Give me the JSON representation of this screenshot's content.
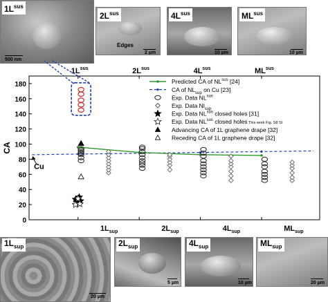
{
  "figure": {
    "top_panels": [
      {
        "label": "1L",
        "label_sup": "sus",
        "scale": "500 nm",
        "annotation": ""
      },
      {
        "label": "2L",
        "label_sup": "sus",
        "scale": "2 µm",
        "annotation": "Edges"
      },
      {
        "label": "4L",
        "label_sup": "sus",
        "scale": "10 µm",
        "annotation": ""
      },
      {
        "label": "ML",
        "label_sup": "sus",
        "scale": "10 µm",
        "annotation": ""
      }
    ],
    "bottom_panels": [
      {
        "label": "1L",
        "label_sub": "sup",
        "scale": "20 µm"
      },
      {
        "label": "2L",
        "label_sub": "sup",
        "scale": "5 µm"
      },
      {
        "label": "4L",
        "label_sub": "sup",
        "scale": "10 µm"
      },
      {
        "label": "ML",
        "label_sub": "sup",
        "scale": "20 µm"
      }
    ]
  },
  "chart_data": {
    "type": "scatter",
    "ylabel": "CA",
    "ylim": [
      0,
      190
    ],
    "yticks": [
      0,
      20,
      40,
      60,
      80,
      100,
      120,
      140,
      160,
      180
    ],
    "top_categories": [
      {
        "base": "1L",
        "sup": "sus"
      },
      {
        "base": "2L",
        "sup": "sus"
      },
      {
        "base": "4L",
        "sup": "sus"
      },
      {
        "base": "ML",
        "sup": "sus"
      }
    ],
    "bottom_categories": [
      {
        "base": "1L",
        "sub": "sup"
      },
      {
        "base": "2L",
        "sub": "sup"
      },
      {
        "base": "4L",
        "sub": "sup"
      },
      {
        "base": "ML",
        "sub": "sup"
      }
    ],
    "cu_label": "Cu",
    "legend_position": "top-right",
    "legend": [
      {
        "key": "pred",
        "text": "Predicted CA of NL",
        "sup": "sus",
        "tail": " [24]"
      },
      {
        "key": "cu",
        "text": "CA of NL",
        "sub": "sup",
        "tail": " on Cu [23]"
      },
      {
        "key": "sus",
        "text": "Exp. Data NL",
        "sup": "sus",
        "tail": ""
      },
      {
        "key": "sup",
        "text": "Exp. Data Nl",
        "sub": "sup",
        "tail": ""
      },
      {
        "key": "holes",
        "text": "Exp. Data NL",
        "sup": "sus",
        "tail": " closed holes [31]"
      },
      {
        "key": "holes_work",
        "text": "Exp. Data NL",
        "sup": "sus",
        "tail": " closed holes",
        "small": "This work Fig. S8 SI"
      },
      {
        "key": "adv",
        "text": "Advancing CA of 1L graphene drape [32]",
        "tail": ""
      },
      {
        "key": "rec",
        "text": "Receding CA of 1L graphene drape [32]",
        "tail": ""
      }
    ],
    "series": {
      "predicted": [
        [
          0.5,
          96
        ],
        [
          1.5,
          89
        ],
        [
          2.5,
          86
        ],
        [
          3.5,
          85
        ]
      ],
      "cu_line": [
        [
          -0.25,
          86
        ],
        [
          4.35,
          91
        ]
      ],
      "sus_circles": [
        [
          0.55,
          78
        ],
        [
          0.55,
          82
        ],
        [
          0.55,
          86
        ],
        [
          0.55,
          88
        ],
        [
          0.55,
          90
        ],
        [
          0.55,
          92
        ],
        [
          0.55,
          94
        ],
        [
          1.55,
          68
        ],
        [
          1.55,
          72
        ],
        [
          1.55,
          75
        ],
        [
          1.55,
          78
        ],
        [
          1.55,
          82
        ],
        [
          1.55,
          86
        ],
        [
          1.55,
          90
        ],
        [
          1.55,
          94
        ],
        [
          1.55,
          96
        ],
        [
          2.55,
          58
        ],
        [
          2.55,
          62
        ],
        [
          2.55,
          66
        ],
        [
          2.55,
          70
        ],
        [
          2.55,
          74
        ],
        [
          2.55,
          78
        ],
        [
          2.55,
          84
        ],
        [
          2.55,
          88
        ],
        [
          2.55,
          93
        ],
        [
          3.55,
          52
        ],
        [
          3.55,
          56
        ],
        [
          3.55,
          60
        ],
        [
          3.55,
          64
        ],
        [
          3.55,
          70
        ],
        [
          3.55,
          74
        ],
        [
          3.55,
          80
        ]
      ],
      "sus_circles_red": [
        [
          0.55,
          145
        ],
        [
          0.55,
          152
        ],
        [
          0.55,
          158
        ],
        [
          0.55,
          166
        ],
        [
          0.55,
          172
        ]
      ],
      "sup_diamonds": [
        [
          1.0,
          62
        ],
        [
          1.0,
          66
        ],
        [
          1.0,
          70
        ],
        [
          1.0,
          74
        ],
        [
          1.0,
          78
        ],
        [
          1.0,
          82
        ],
        [
          1.0,
          86
        ],
        [
          1.0,
          90
        ],
        [
          2.0,
          66
        ],
        [
          2.0,
          72
        ],
        [
          2.0,
          76
        ],
        [
          2.0,
          80
        ],
        [
          2.0,
          84
        ],
        [
          2.0,
          86
        ],
        [
          3.0,
          52
        ],
        [
          3.0,
          58
        ],
        [
          3.0,
          64
        ],
        [
          3.0,
          70
        ],
        [
          3.0,
          74
        ],
        [
          3.0,
          78
        ],
        [
          3.0,
          84
        ],
        [
          4.0,
          52
        ],
        [
          4.0,
          56
        ],
        [
          4.0,
          62
        ],
        [
          4.0,
          68
        ],
        [
          4.0,
          72
        ],
        [
          4.0,
          76
        ]
      ],
      "holes_filled": [
        [
          0.5,
          22
        ],
        [
          0.54,
          25
        ],
        [
          0.46,
          27
        ],
        [
          0.52,
          30
        ],
        [
          0.48,
          24
        ]
      ],
      "holes_open": [
        [
          0.46,
          20
        ],
        [
          0.53,
          21
        ],
        [
          0.5,
          28
        ]
      ],
      "advancing": [
        [
          0.55,
          101
        ]
      ],
      "receding": [
        [
          0.55,
          57
        ]
      ]
    }
  }
}
